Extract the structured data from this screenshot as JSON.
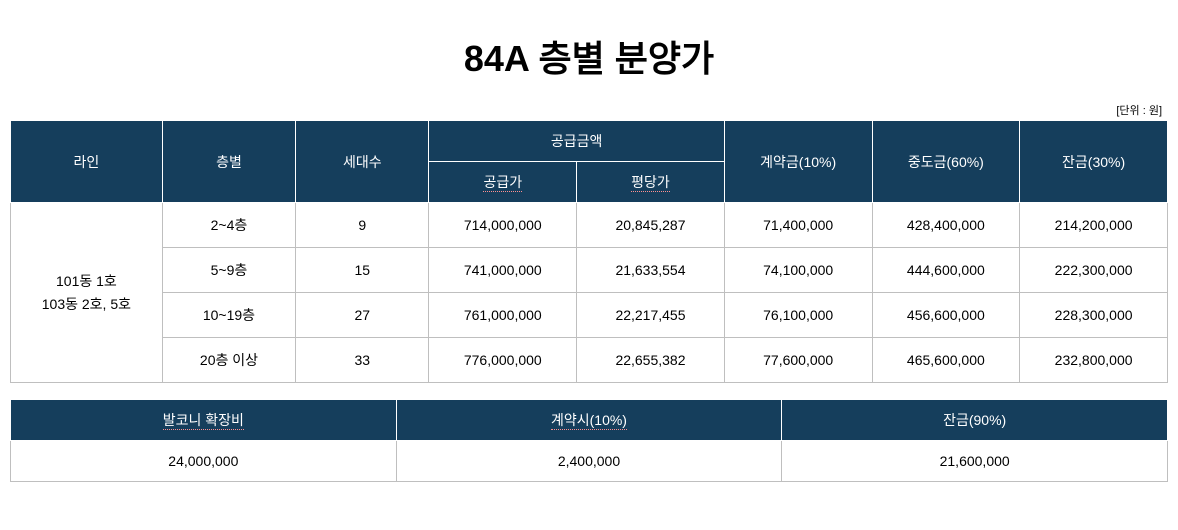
{
  "title": "84A 층별 분양가",
  "unit_label": "[단위 : 원]",
  "colors": {
    "header_bg": "#153e5c",
    "header_text": "#ffffff",
    "border": "#bfbfbf",
    "body_bg": "#ffffff",
    "underline_accent": "#ff9090"
  },
  "main_table": {
    "headers": {
      "line": "라인",
      "floor": "층별",
      "units": "세대수",
      "supply_group": "공급금액",
      "supply_price": "공급가",
      "per_area": "평당가",
      "contract": "계약금(10%)",
      "middle": "중도금(60%)",
      "final": "잔금(30%)"
    },
    "line_label_1": "101동 1호",
    "line_label_2": "103동 2호, 5호",
    "rows": [
      {
        "floor": "2~4층",
        "units": "9",
        "supply": "714,000,000",
        "per_area": "20,845,287",
        "contract": "71,400,000",
        "middle": "428,400,000",
        "final": "214,200,000"
      },
      {
        "floor": "5~9층",
        "units": "15",
        "supply": "741,000,000",
        "per_area": "21,633,554",
        "contract": "74,100,000",
        "middle": "444,600,000",
        "final": "222,300,000"
      },
      {
        "floor": "10~19층",
        "units": "27",
        "supply": "761,000,000",
        "per_area": "22,217,455",
        "contract": "76,100,000",
        "middle": "456,600,000",
        "final": "228,300,000"
      },
      {
        "floor": "20층 이상",
        "units": "33",
        "supply": "776,000,000",
        "per_area": "22,655,382",
        "contract": "77,600,000",
        "middle": "465,600,000",
        "final": "232,800,000"
      }
    ]
  },
  "sub_table": {
    "headers": {
      "balcony": "발코니 확장비",
      "contract": "계약시(10%)",
      "final": "잔금(90%)"
    },
    "row": {
      "balcony": "24,000,000",
      "contract": "2,400,000",
      "final": "21,600,000"
    }
  }
}
